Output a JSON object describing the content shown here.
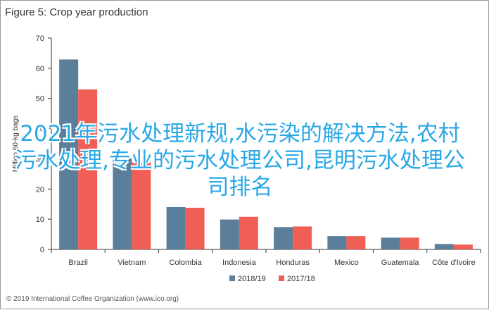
{
  "figure_title": "Figure 5: Crop year production",
  "copyright": "© 2019 International Coffee Organization (www.ico.org)",
  "overlay_text": "2021年污水处理新规,水污染的解决方法,农村污水处理,专业的污水处理公司,昆明污水处理公司排名",
  "chart_data": {
    "type": "bar",
    "title": "Figure 5: Crop year production",
    "xlabel": "",
    "ylabel": "Million 60-kg bags",
    "categories": [
      "Brazil",
      "Vietnam",
      "Colombia",
      "Indonesia",
      "Honduras",
      "Mexico",
      "Guatemala",
      "Côte d'Ivoire"
    ],
    "series": [
      {
        "name": "2018/19",
        "color": "#5b7f9a",
        "values": [
          62.9,
          30.2,
          14.0,
          9.9,
          7.4,
          4.4,
          3.9,
          1.8
        ]
      },
      {
        "name": "2017/18",
        "color": "#f05f56",
        "values": [
          53.0,
          28.8,
          13.8,
          10.8,
          7.6,
          4.4,
          3.9,
          1.6
        ]
      }
    ],
    "yticks": [
      0,
      10,
      20,
      30,
      40,
      50,
      60,
      70
    ],
    "ylim": [
      0,
      70
    ],
    "grid": false,
    "legend": "bottom-center"
  }
}
